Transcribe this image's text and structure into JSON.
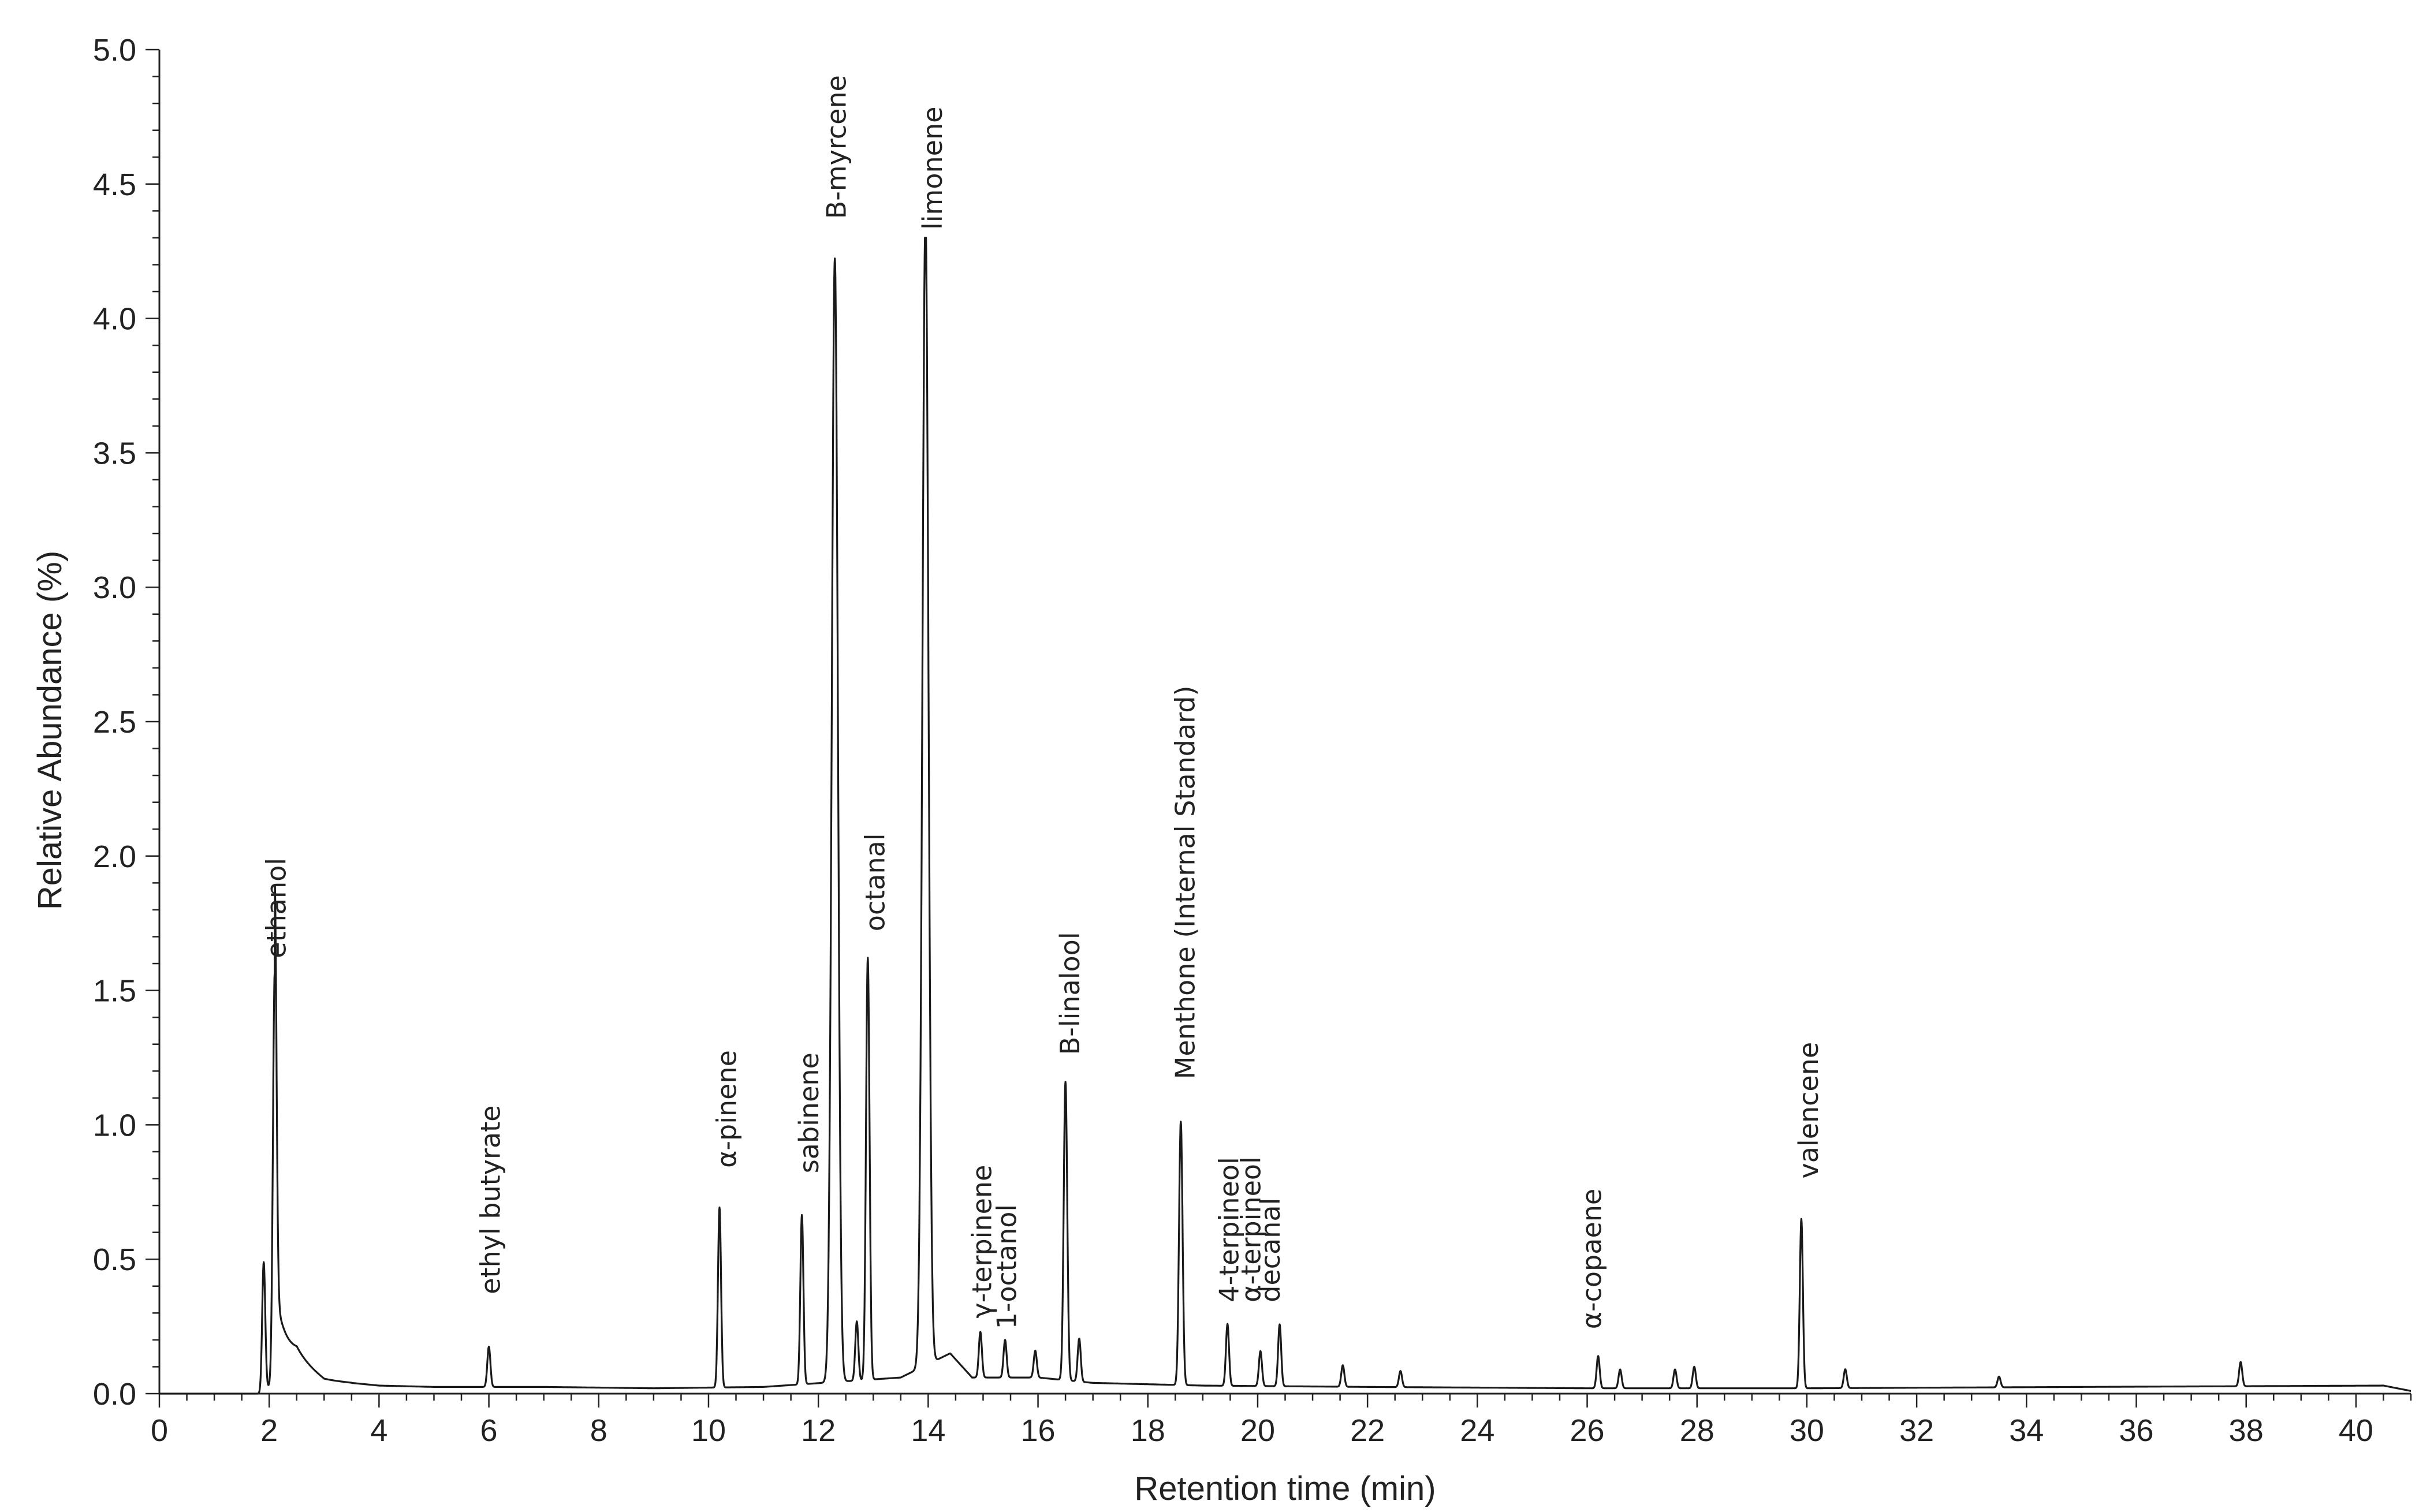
{
  "chart_data": {
    "type": "line",
    "title": "",
    "xlabel": "Retention time (min)",
    "ylabel": "Relative Abundance (%)",
    "xlim": [
      0,
      41
    ],
    "ylim": [
      0,
      5.0
    ],
    "xticks": [
      "0",
      "2",
      "4",
      "6",
      "8",
      "10",
      "12",
      "14",
      "16",
      "18",
      "20",
      "22",
      "24",
      "26",
      "28",
      "30",
      "32",
      "34",
      "36",
      "38",
      "40"
    ],
    "yticks": [
      "0.0",
      "0.5",
      "1.0",
      "1.5",
      "2.0",
      "2.5",
      "3.0",
      "3.5",
      "4.0",
      "4.5",
      "5.0"
    ],
    "grid": false,
    "line_color": "#1a1a1a",
    "baseline": [
      [
        1.85,
        0.0
      ],
      [
        2.5,
        0.12
      ],
      [
        3.0,
        0.05
      ],
      [
        4.0,
        0.03
      ],
      [
        5.0,
        0.025
      ],
      [
        7.0,
        0.025
      ],
      [
        9.0,
        0.02
      ],
      [
        11.0,
        0.025
      ],
      [
        13.5,
        0.06
      ],
      [
        14.4,
        0.15
      ],
      [
        14.8,
        0.06
      ],
      [
        16.0,
        0.06
      ],
      [
        17.0,
        0.04
      ],
      [
        19.0,
        0.03
      ],
      [
        22.0,
        0.025
      ],
      [
        26.0,
        0.02
      ],
      [
        30.0,
        0.02
      ],
      [
        35.0,
        0.025
      ],
      [
        40.5,
        0.03
      ],
      [
        41.0,
        0.01
      ]
    ],
    "peaks": [
      {
        "label": "",
        "rt": 1.9,
        "height": 0.48
      },
      {
        "label": "ethanol",
        "rt": 2.1,
        "height": 1.52
      },
      {
        "label": "ethyl butyrate",
        "rt": 6.0,
        "height": 0.15
      },
      {
        "label": "α-pinene",
        "rt": 10.2,
        "height": 0.67
      },
      {
        "label": "sabinene",
        "rt": 11.7,
        "height": 0.63
      },
      {
        "label": "",
        "rt": 12.7,
        "height": 0.22
      },
      {
        "label": "B-myrcene",
        "rt": 12.3,
        "height": 4.18
      },
      {
        "label": "octanal",
        "rt": 12.9,
        "height": 1.57
      },
      {
        "label": "limonene",
        "rt": 13.95,
        "height": 4.28
      },
      {
        "label": "γ-terpinene",
        "rt": 14.95,
        "height": 0.17
      },
      {
        "label": "1-octanol",
        "rt": 15.4,
        "height": 0.14
      },
      {
        "label": "",
        "rt": 15.95,
        "height": 0.1
      },
      {
        "label": "B-linalool",
        "rt": 16.5,
        "height": 1.11
      },
      {
        "label": "",
        "rt": 16.75,
        "height": 0.16
      },
      {
        "label": "Menthone (Internal Standard)",
        "rt": 18.6,
        "height": 0.98
      },
      {
        "label": "4-terpineol",
        "rt": 19.45,
        "height": 0.23
      },
      {
        "label": "α-terpineol",
        "rt": 20.05,
        "height": 0.13
      },
      {
        "label": "decanal",
        "rt": 20.4,
        "height": 0.23
      },
      {
        "label": "",
        "rt": 21.55,
        "height": 0.08
      },
      {
        "label": "",
        "rt": 22.6,
        "height": 0.06
      },
      {
        "label": "α-copaene",
        "rt": 26.2,
        "height": 0.12
      },
      {
        "label": "",
        "rt": 26.6,
        "height": 0.07
      },
      {
        "label": "",
        "rt": 27.6,
        "height": 0.07
      },
      {
        "label": "",
        "rt": 27.95,
        "height": 0.08
      },
      {
        "label": "valencene",
        "rt": 29.9,
        "height": 0.63
      },
      {
        "label": "",
        "rt": 30.7,
        "height": 0.07
      },
      {
        "label": "",
        "rt": 33.5,
        "height": 0.04
      },
      {
        "label": "",
        "rt": 37.9,
        "height": 0.09
      }
    ]
  }
}
